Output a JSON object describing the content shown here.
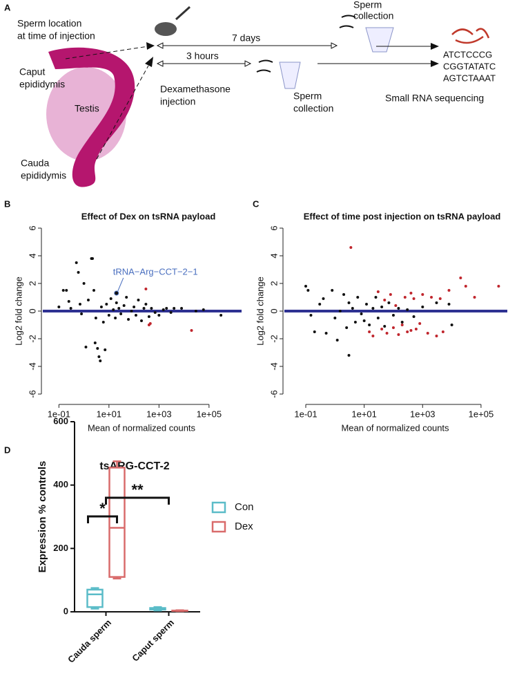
{
  "diagram": {
    "panel": "A",
    "location_title": [
      "Sperm location",
      "at time of injection"
    ],
    "caput": [
      "Caput",
      "epididymis"
    ],
    "testis": "Testis",
    "cauda": [
      "Cauda",
      "epididymis"
    ],
    "days": "7 days",
    "hours": "3 hours",
    "injection": [
      "Dexamethasone",
      "injection"
    ],
    "collection_top": [
      "Sperm",
      "collection"
    ],
    "collection_bottom": [
      "Sperm",
      "collection"
    ],
    "sequence": [
      "ATCTCCCG",
      "CGGTATATC",
      "AGTCTAAAT"
    ],
    "sequencing": "Small RNA sequencing"
  },
  "chart_data": [
    {
      "panel": "B",
      "type": "scatter",
      "title": "Effect of Dex on tsRNA payload",
      "xlabel": "Mean of normalized counts",
      "ylabel": "Log2 fold change",
      "xscale": "log",
      "xlim": [
        0.02,
        2000000
      ],
      "ylim": [
        -7,
        7
      ],
      "xticks": [
        {
          "value": 0.1,
          "label": "1e-01"
        },
        {
          "value": 10,
          "label": "1e+01"
        },
        {
          "value": 1000,
          "label": "1e+03"
        },
        {
          "value": 100000,
          "label": "1e+05"
        }
      ],
      "yticks": [
        -6,
        -4,
        -2,
        0,
        2,
        4,
        6
      ],
      "reference_line": {
        "y": 0,
        "color": "#2e3192"
      },
      "series": [
        {
          "color": "#111111",
          "x": [
            0.1,
            0.15,
            0.2,
            0.25,
            0.3,
            0.5,
            0.6,
            0.7,
            0.8,
            1,
            1.2,
            1.5,
            2,
            2.2,
            2.5,
            2.8,
            3,
            3.5,
            4,
            4.5,
            5,
            6,
            7,
            8,
            10,
            12,
            15,
            18,
            20,
            25,
            30,
            40,
            50,
            60,
            80,
            100,
            120,
            150,
            200,
            250,
            300,
            400,
            500,
            700,
            1000,
            1500,
            2000,
            3000,
            4000,
            8000,
            30000,
            60000,
            300000
          ],
          "values": [
            0.3,
            1.5,
            1.5,
            0.7,
            0.2,
            3.5,
            2.8,
            0.5,
            -0.2,
            2.0,
            -2.6,
            0.8,
            3.8,
            3.8,
            1.5,
            -2.3,
            -0.5,
            -2.7,
            -3.3,
            -3.6,
            0.3,
            -0.8,
            -2.8,
            0.5,
            -0.3,
            0.9,
            0.1,
            -0.5,
            0.6,
            0.2,
            -0.2,
            0.4,
            1.0,
            -0.6,
            0.0,
            0.3,
            -0.3,
            0.8,
            -0.7,
            0.2,
            0.5,
            -0.4,
            0.2,
            -0.1,
            -0.3,
            0.1,
            0.2,
            -0.1,
            0.2,
            0.2,
            0.0,
            0.1,
            -0.3
          ]
        },
        {
          "color": "#c0262d",
          "x": [
            300,
            400,
            450,
            20000
          ],
          "values": [
            1.6,
            -1.0,
            -0.9,
            -1.4
          ]
        }
      ],
      "annotation": {
        "text": "tRNA−Arg−CCT−2−1",
        "x": 20,
        "y": 1.3,
        "color": "#4a6fbf"
      }
    },
    {
      "panel": "C",
      "type": "scatter",
      "title": "Effect of time post injection on tsRNA payload",
      "xlabel": "Mean of normalized counts",
      "ylabel": "Log2 fold change",
      "xscale": "log",
      "xlim": [
        0.0166,
        794000
      ],
      "ylim": [
        -7,
        7
      ],
      "xticks": [
        {
          "value": 0.1,
          "label": "1e-01"
        },
        {
          "value": 10,
          "label": "1e+01"
        },
        {
          "value": 1000,
          "label": "1e+03"
        },
        {
          "value": 100000,
          "label": "1e+05"
        }
      ],
      "yticks": [
        -6,
        -4,
        -2,
        0,
        2,
        4,
        6
      ],
      "reference_line": {
        "y": 0,
        "color": "#2e3192"
      },
      "series": [
        {
          "color": "#111111",
          "x": [
            0.1,
            0.12,
            0.15,
            0.2,
            0.3,
            0.4,
            0.5,
            0.8,
            1,
            1.2,
            1.5,
            2,
            2.5,
            3,
            3,
            4,
            5,
            6,
            8,
            10,
            12,
            15,
            20,
            25,
            30,
            40,
            50,
            70,
            100,
            150,
            200,
            300,
            500,
            1000,
            3000,
            8000,
            10000
          ],
          "values": [
            1.8,
            1.5,
            -0.3,
            -1.5,
            0.5,
            0.9,
            -1.6,
            1.5,
            -0.5,
            -2.1,
            0.0,
            1.2,
            -1.2,
            0.6,
            -3.2,
            0.2,
            -0.8,
            1.0,
            -0.2,
            -0.7,
            0.5,
            -1.0,
            0.2,
            1.0,
            -0.5,
            0.3,
            -1.1,
            0.6,
            -0.3,
            0.2,
            -0.8,
            0.1,
            -0.4,
            0.3,
            0.6,
            0.5,
            -1.0
          ]
        },
        {
          "color": "#c0262d",
          "x": [
            3.5,
            15,
            20,
            30,
            40,
            50,
            60,
            80,
            100,
            120,
            150,
            200,
            250,
            300,
            400,
            400,
            500,
            600,
            800,
            1000,
            1500,
            2000,
            3000,
            4000,
            5000,
            8000,
            20000,
            30000,
            60000,
            400000
          ],
          "values": [
            4.6,
            -1.5,
            -1.8,
            1.4,
            -1.3,
            0.8,
            -1.6,
            1.2,
            -1.2,
            0.4,
            -1.7,
            -1.0,
            1.0,
            -1.5,
            1.3,
            -1.4,
            0.9,
            -1.3,
            -0.9,
            1.2,
            -1.6,
            1.0,
            -1.8,
            0.9,
            -1.5,
            1.5,
            2.4,
            1.8,
            1.0,
            1.8
          ]
        }
      ]
    },
    {
      "panel": "D",
      "type": "box",
      "title": "tsARG-CCT-2",
      "ylabel": "Expression % controls",
      "categories": [
        "Cauda sperm",
        "Caput sperm"
      ],
      "ylim": [
        0,
        600
      ],
      "yticks": [
        0,
        200,
        400,
        600
      ],
      "series": [
        {
          "name": "Con",
          "color": "#5bbcc8",
          "boxes": [
            [
              10,
              15,
              55,
              70,
              75
            ],
            [
              4,
              7,
              10,
              12,
              15
            ]
          ]
        },
        {
          "name": "Dex",
          "color": "#d96b6b",
          "boxes": [
            [
              105,
              110,
              265,
              455,
              475
            ],
            [
              2,
              3,
              3,
              4,
              5
            ]
          ]
        }
      ],
      "significance": [
        "*",
        "**"
      ]
    }
  ]
}
